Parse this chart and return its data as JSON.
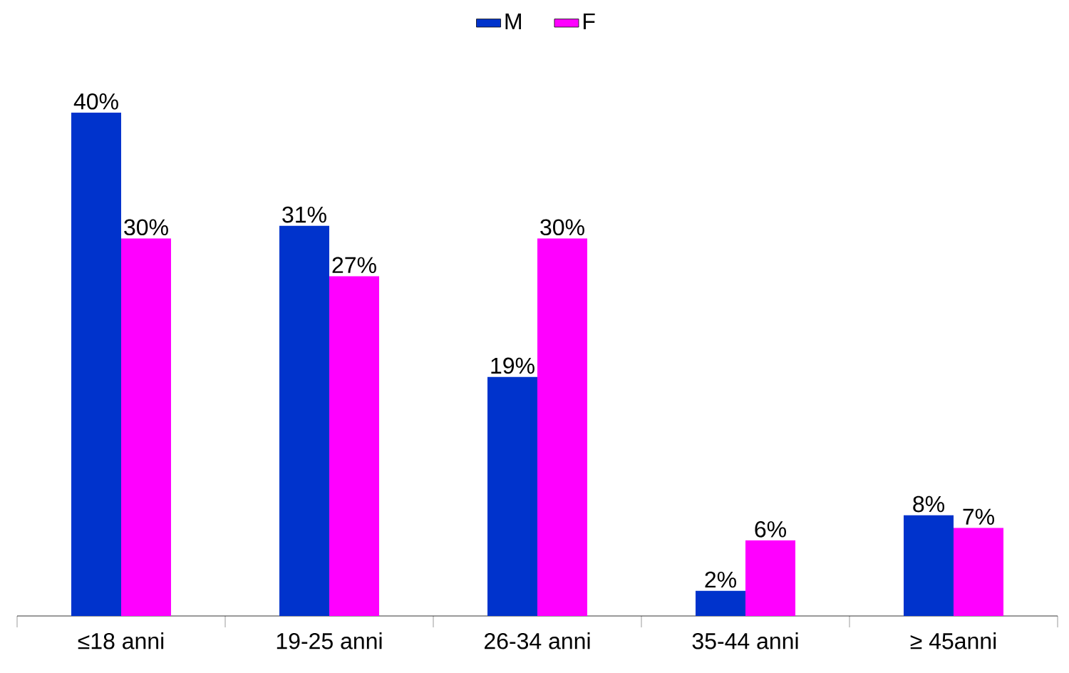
{
  "chart_data": {
    "type": "bar",
    "categories": [
      "≤18 anni",
      "19-25 anni",
      "26-34 anni",
      "35-44 anni",
      "≥ 45anni"
    ],
    "series": [
      {
        "name": "M",
        "color": "#0033cc",
        "values": [
          40,
          31,
          19,
          2,
          8
        ],
        "value_labels": [
          "40%",
          "31%",
          "19%",
          "2%",
          "8%"
        ]
      },
      {
        "name": "F",
        "color": "#ff00ff",
        "values": [
          30,
          27,
          30,
          6,
          7
        ],
        "value_labels": [
          "30%",
          "27%",
          "30%",
          "6%",
          "7%"
        ]
      }
    ],
    "legend": "top"
  }
}
